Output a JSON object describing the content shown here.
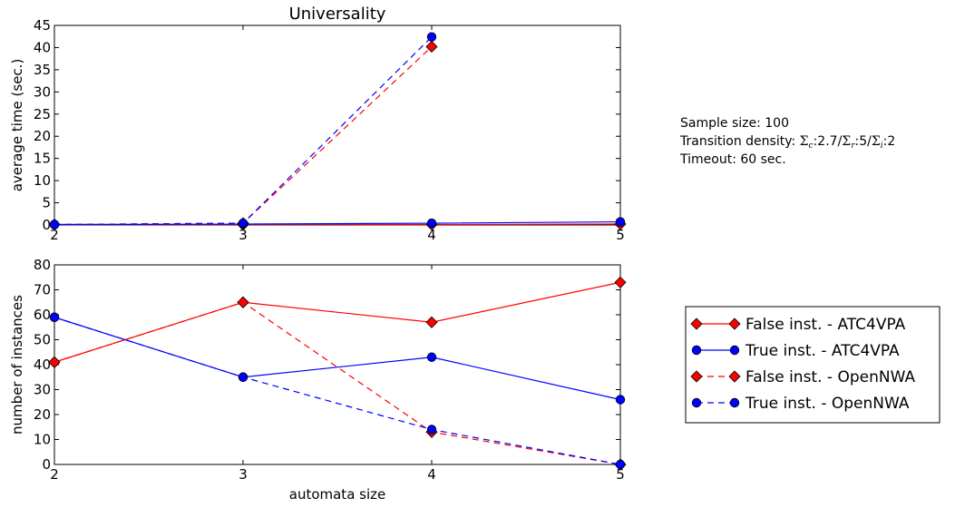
{
  "chart_data": [
    {
      "type": "line",
      "title": "Universality",
      "xlabel": "",
      "ylabel": "average time (sec.)",
      "xlim": [
        2,
        5
      ],
      "ylim": [
        0,
        45
      ],
      "x_ticks": [
        "2",
        "3",
        "4",
        "5"
      ],
      "y_ticks": [
        "0",
        "5",
        "10",
        "15",
        "20",
        "25",
        "30",
        "35",
        "40",
        "45"
      ],
      "grid": false,
      "series": [
        {
          "name": "False inst. - ATC4VPA",
          "color": "#ff0000",
          "marker": "diamond",
          "linestyle": "solid",
          "x": [
            2,
            3,
            4,
            5
          ],
          "y": [
            0.1,
            0.1,
            0.1,
            0.2
          ]
        },
        {
          "name": "True inst. - ATC4VPA",
          "color": "#0000ff",
          "marker": "circle",
          "linestyle": "solid",
          "x": [
            2,
            3,
            4,
            5
          ],
          "y": [
            0.1,
            0.2,
            0.4,
            0.7
          ]
        },
        {
          "name": "False inst. - OpenNWA",
          "color": "#ff0000",
          "marker": "diamond",
          "linestyle": "dashed",
          "x": [
            2,
            3,
            4
          ],
          "y": [
            0.1,
            0.4,
            40.2
          ]
        },
        {
          "name": "True inst. - OpenNWA",
          "color": "#0000ff",
          "marker": "circle",
          "linestyle": "dashed",
          "x": [
            2,
            3,
            4
          ],
          "y": [
            0.1,
            0.4,
            42.4
          ]
        }
      ]
    },
    {
      "type": "line",
      "title": "",
      "xlabel": "automata size",
      "ylabel": "number of instances",
      "xlim": [
        2,
        5
      ],
      "ylim": [
        0,
        80
      ],
      "x_ticks": [
        "2",
        "3",
        "4",
        "5"
      ],
      "y_ticks": [
        "0",
        "10",
        "20",
        "30",
        "40",
        "50",
        "60",
        "70",
        "80"
      ],
      "grid": false,
      "legend_position": "right",
      "series": [
        {
          "name": "False inst. - ATC4VPA",
          "color": "#ff0000",
          "marker": "diamond",
          "linestyle": "solid",
          "x": [
            2,
            3,
            4,
            5
          ],
          "y": [
            41,
            65,
            57,
            73
          ]
        },
        {
          "name": "True inst. - ATC4VPA",
          "color": "#0000ff",
          "marker": "circle",
          "linestyle": "solid",
          "x": [
            2,
            3,
            4,
            5
          ],
          "y": [
            59,
            35,
            43,
            26
          ]
        },
        {
          "name": "False inst. - OpenNWA",
          "color": "#ff0000",
          "marker": "diamond",
          "linestyle": "dashed",
          "x": [
            2,
            3,
            4,
            5
          ],
          "y": [
            41,
            65,
            13,
            0
          ]
        },
        {
          "name": "True inst. - OpenNWA",
          "color": "#0000ff",
          "marker": "circle",
          "linestyle": "dashed",
          "x": [
            2,
            3,
            4,
            5
          ],
          "y": [
            59,
            35,
            14,
            0
          ]
        }
      ]
    }
  ],
  "annotations": {
    "sample_size": "Sample size: 100",
    "transition_density_prefix": "Transition density: ",
    "sigma": "Σ",
    "sub_c": "c",
    "sub_r": "r",
    "sub_i": "i",
    "val_c": ":2.7/",
    "val_r": ":5/",
    "val_i": ":2",
    "timeout": "Timeout: 60 sec."
  }
}
